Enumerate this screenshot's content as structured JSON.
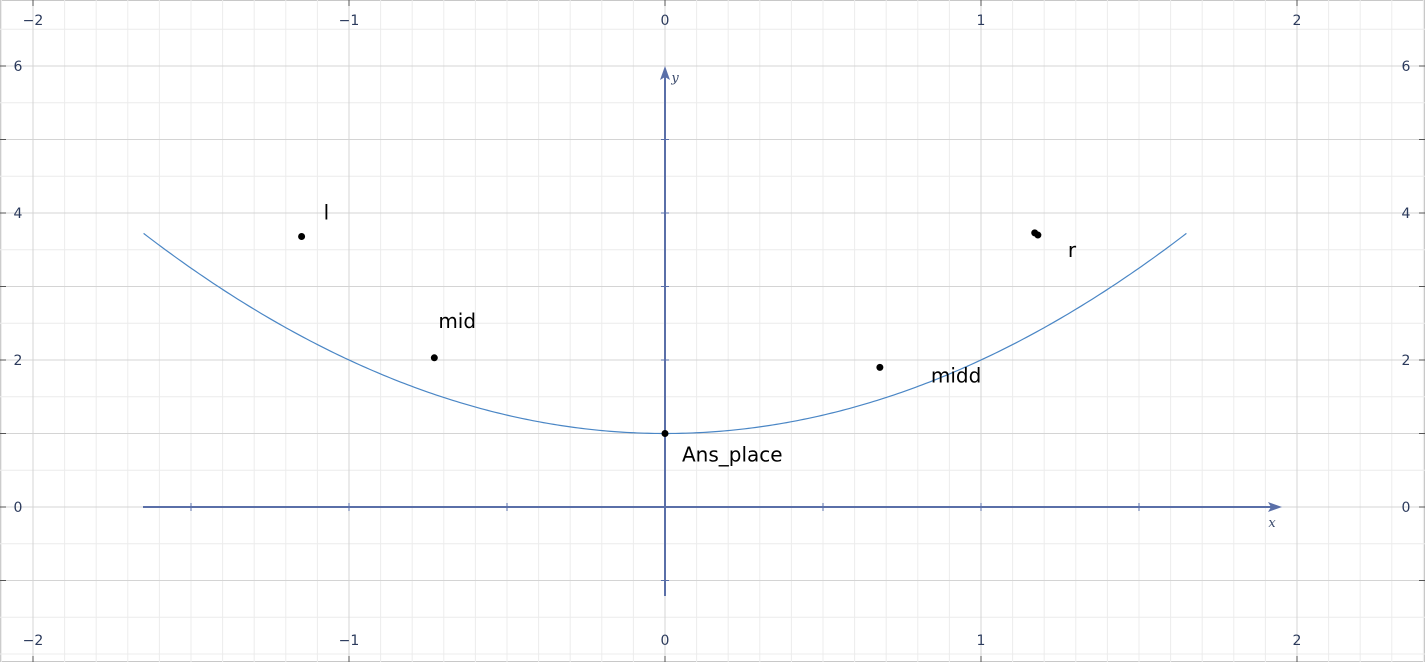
{
  "chart_data": {
    "type": "line",
    "title": "",
    "xlabel": "x",
    "ylabel": "y",
    "xlim": [
      -2.1,
      2.4
    ],
    "ylim": [
      -2.1,
      6.4
    ],
    "x_ticks": [
      -2,
      -1,
      0,
      1,
      2
    ],
    "x_tick_labels": [
      "−2",
      "−1",
      "0",
      "1",
      "2"
    ],
    "y_ticks": [
      0,
      2,
      4,
      6
    ],
    "y_tick_labels": [
      "0",
      "2",
      "4",
      "6"
    ],
    "grid": true,
    "legend": "none",
    "function": "y = x^2 + 1",
    "series": [
      {
        "x_range": [
          -1.65,
          1.65
        ],
        "color": "#4a86c5"
      }
    ],
    "points": [
      {
        "label": "l",
        "x": -1.15,
        "y": 3.68
      },
      {
        "label": "mid",
        "x": -0.73,
        "y": 2.03
      },
      {
        "label": "Ans_place",
        "x": 0.0,
        "y": 1.0
      },
      {
        "label": "midd",
        "x": 0.68,
        "y": 1.9
      },
      {
        "label": "r",
        "x": 1.18,
        "y": 3.7
      }
    ],
    "extra_points": [
      {
        "x": 1.17,
        "y": 3.73
      }
    ],
    "colors": {
      "curve": "#4a86c5",
      "axes": "#5a6fa8",
      "grid": "#d4d4d4",
      "points": "#000000"
    }
  }
}
